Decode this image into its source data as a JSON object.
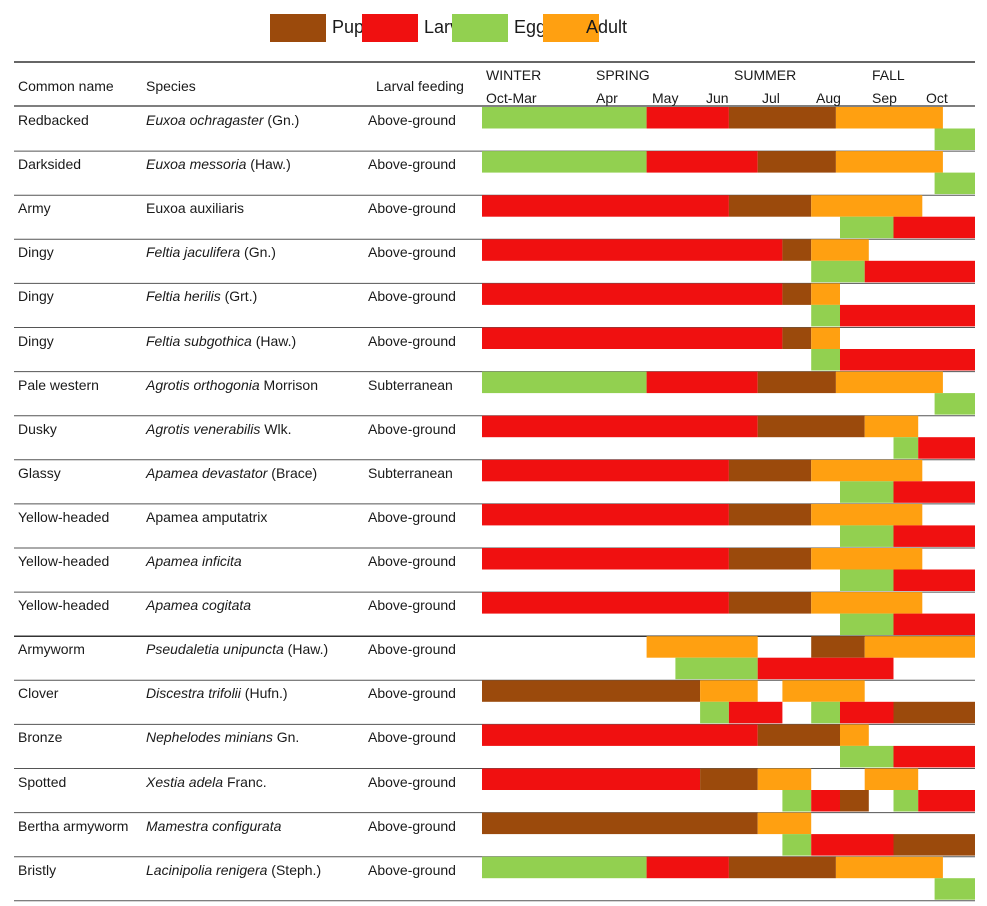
{
  "legend": [
    {
      "label": "Pupa",
      "color": "#9b4a0c"
    },
    {
      "label": "Larva",
      "color": "#f01010"
    },
    {
      "label": "Egg",
      "color": "#92d050"
    },
    {
      "label": "Adult",
      "color": "#ffa011"
    }
  ],
  "headers": {
    "common_name": "Common name",
    "species": "Species",
    "larval_feeding": "Larval feeding"
  },
  "seasons": [
    "WINTER",
    "SPRING",
    "SUMMER",
    "FALL"
  ],
  "months": [
    "Oct-Mar",
    "Apr",
    "May",
    "Jun",
    "Jul",
    "Aug",
    "Sep",
    "Oct"
  ],
  "chart_data": {
    "type": "table",
    "month_axis": [
      "Oct-Mar",
      "Apr",
      "May",
      "Jun",
      "Jul",
      "Aug",
      "Sep",
      "Oct"
    ],
    "note": "Bars span month positions: 0=start of Oct-Mar, 1=start of Apr ... 7=start of Oct, 8=end of Oct. Lane 0 = upper bar, lane 1 = lower bar.",
    "rows": [
      {
        "common": "Redbacked",
        "species": "Euxoa ochragaster",
        "author": " (Gn.)",
        "italic": true,
        "feeding": "Above-ground",
        "bars": [
          {
            "stage": "Egg",
            "start": 0,
            "end": 2,
            "lane": 0
          },
          {
            "stage": "Larva",
            "start": 2,
            "end": 3,
            "lane": 0
          },
          {
            "stage": "Pupa",
            "start": 3,
            "end": 4.3,
            "lane": 0
          },
          {
            "stage": "Adult",
            "start": 4.3,
            "end": 5.6,
            "lane": 0
          },
          {
            "stage": "Egg",
            "start": 5.5,
            "end": 6.5,
            "lane": 1
          }
        ]
      },
      {
        "common": "Darksided",
        "species": "Euxoa messoria",
        "author": " (Haw.)",
        "italic": true,
        "feeding": "Above-ground",
        "bars": [
          {
            "stage": "Egg",
            "start": 0,
            "end": 2,
            "lane": 0
          },
          {
            "stage": "Larva",
            "start": 2,
            "end": 3.35,
            "lane": 0
          },
          {
            "stage": "Pupa",
            "start": 3.35,
            "end": 4.3,
            "lane": 0
          },
          {
            "stage": "Adult",
            "start": 4.3,
            "end": 5.6,
            "lane": 0
          },
          {
            "stage": "Egg",
            "start": 5.5,
            "end": 6.5,
            "lane": 1
          }
        ]
      },
      {
        "common": "Army",
        "species": "Euxoa auxiliaris",
        "author": "",
        "italic": false,
        "feeding": "Above-ground",
        "bars": [
          {
            "stage": "Larva",
            "start": 0,
            "end": 3,
            "lane": 0
          },
          {
            "stage": "Pupa",
            "start": 3,
            "end": 4,
            "lane": 0
          },
          {
            "stage": "Adult",
            "start": 4,
            "end": 5.35,
            "lane": 0
          },
          {
            "stage": "Egg",
            "start": 4.35,
            "end": 5,
            "lane": 1
          },
          {
            "stage": "Larva",
            "start": 5,
            "end": 6.5,
            "lane": 1
          }
        ]
      },
      {
        "common": "Dingy",
        "species": "Feltia jaculifera",
        "author": " (Gn.)",
        "italic": true,
        "feeding": "Above-ground",
        "bars": [
          {
            "stage": "Larva",
            "start": 0,
            "end": 3.65,
            "lane": 0
          },
          {
            "stage": "Pupa",
            "start": 3.65,
            "end": 4,
            "lane": 0
          },
          {
            "stage": "Adult",
            "start": 4,
            "end": 4.7,
            "lane": 0
          },
          {
            "stage": "Egg",
            "start": 4,
            "end": 4.65,
            "lane": 1
          },
          {
            "stage": "Larva",
            "start": 4.65,
            "end": 6.5,
            "lane": 1
          }
        ]
      },
      {
        "common": "Dingy",
        "species": "Feltia herilis",
        "author": " (Grt.)",
        "italic": true,
        "feeding": "Above-ground",
        "bars": [
          {
            "stage": "Larva",
            "start": 0,
            "end": 3.65,
            "lane": 0
          },
          {
            "stage": "Pupa",
            "start": 3.65,
            "end": 4,
            "lane": 0
          },
          {
            "stage": "Adult",
            "start": 4,
            "end": 4.35,
            "lane": 0
          },
          {
            "stage": "Egg",
            "start": 4,
            "end": 4.35,
            "lane": 1
          },
          {
            "stage": "Larva",
            "start": 4.35,
            "end": 6.5,
            "lane": 1
          }
        ]
      },
      {
        "common": "Dingy",
        "species": "Feltia subgothica",
        "author": " (Haw.)",
        "italic": true,
        "feeding": "Above-ground",
        "bars": [
          {
            "stage": "Larva",
            "start": 0,
            "end": 3.65,
            "lane": 0
          },
          {
            "stage": "Pupa",
            "start": 3.65,
            "end": 4,
            "lane": 0
          },
          {
            "stage": "Adult",
            "start": 4,
            "end": 4.35,
            "lane": 0
          },
          {
            "stage": "Egg",
            "start": 4,
            "end": 4.35,
            "lane": 1
          },
          {
            "stage": "Larva",
            "start": 4.35,
            "end": 6.5,
            "lane": 1
          }
        ]
      },
      {
        "common": "Pale western",
        "species": "Agrotis orthogonia",
        "author": " Morrison",
        "italic": true,
        "feeding": "Subterranean",
        "bars": [
          {
            "stage": "Egg",
            "start": 0,
            "end": 2,
            "lane": 0
          },
          {
            "stage": "Larva",
            "start": 2,
            "end": 3.35,
            "lane": 0
          },
          {
            "stage": "Pupa",
            "start": 3.35,
            "end": 4.3,
            "lane": 0
          },
          {
            "stage": "Adult",
            "start": 4.3,
            "end": 5.6,
            "lane": 0
          },
          {
            "stage": "Egg",
            "start": 5.5,
            "end": 6.5,
            "lane": 1
          }
        ]
      },
      {
        "common": "Dusky",
        "species": "Agrotis venerabilis",
        "author": " Wlk.",
        "italic": true,
        "feeding": "Above-ground",
        "bars": [
          {
            "stage": "Larva",
            "start": 0,
            "end": 3.35,
            "lane": 0
          },
          {
            "stage": "Pupa",
            "start": 3.35,
            "end": 4.65,
            "lane": 0
          },
          {
            "stage": "Adult",
            "start": 4.65,
            "end": 5.3,
            "lane": 0
          },
          {
            "stage": "Egg",
            "start": 5,
            "end": 5.3,
            "lane": 1
          },
          {
            "stage": "Larva",
            "start": 5.3,
            "end": 6.5,
            "lane": 1
          }
        ]
      },
      {
        "common": "Glassy",
        "species": "Apamea devastator",
        "author": " (Brace)",
        "italic": true,
        "feeding": "Subterranean",
        "bars": [
          {
            "stage": "Larva",
            "start": 0,
            "end": 3,
            "lane": 0
          },
          {
            "stage": "Pupa",
            "start": 3,
            "end": 4,
            "lane": 0
          },
          {
            "stage": "Adult",
            "start": 4,
            "end": 5.35,
            "lane": 0
          },
          {
            "stage": "Egg",
            "start": 4.35,
            "end": 5,
            "lane": 1
          },
          {
            "stage": "Larva",
            "start": 5,
            "end": 6.5,
            "lane": 1
          }
        ]
      },
      {
        "common": "Yellow-headed",
        "species": "Apamea amputatrix",
        "author": "",
        "italic": false,
        "feeding": "Above-ground",
        "bars": [
          {
            "stage": "Larva",
            "start": 0,
            "end": 3,
            "lane": 0
          },
          {
            "stage": "Pupa",
            "start": 3,
            "end": 4,
            "lane": 0
          },
          {
            "stage": "Adult",
            "start": 4,
            "end": 5.35,
            "lane": 0
          },
          {
            "stage": "Egg",
            "start": 4.35,
            "end": 5,
            "lane": 1
          },
          {
            "stage": "Larva",
            "start": 5,
            "end": 6.5,
            "lane": 1
          }
        ]
      },
      {
        "common": "Yellow-headed",
        "species": "Apamea inficita",
        "author": "",
        "italic": true,
        "feeding": "Above-ground",
        "bars": [
          {
            "stage": "Larva",
            "start": 0,
            "end": 3,
            "lane": 0
          },
          {
            "stage": "Pupa",
            "start": 3,
            "end": 4,
            "lane": 0
          },
          {
            "stage": "Adult",
            "start": 4,
            "end": 5.35,
            "lane": 0
          },
          {
            "stage": "Egg",
            "start": 4.35,
            "end": 5,
            "lane": 1
          },
          {
            "stage": "Larva",
            "start": 5,
            "end": 6.5,
            "lane": 1
          }
        ]
      },
      {
        "common": "Yellow-headed",
        "species": "Apamea cogitata",
        "author": "",
        "italic": true,
        "feeding": "Above-ground",
        "bars": [
          {
            "stage": "Larva",
            "start": 0,
            "end": 3,
            "lane": 0
          },
          {
            "stage": "Pupa",
            "start": 3,
            "end": 4,
            "lane": 0
          },
          {
            "stage": "Adult",
            "start": 4,
            "end": 5.35,
            "lane": 0
          },
          {
            "stage": "Egg",
            "start": 4.35,
            "end": 5,
            "lane": 1
          },
          {
            "stage": "Larva",
            "start": 5,
            "end": 6.5,
            "lane": 1
          }
        ]
      },
      {
        "common": "Armyworm",
        "species": "Pseudaletia unipuncta",
        "author": " (Haw.)",
        "italic": true,
        "feeding": "Above-ground",
        "bars": [
          {
            "stage": "Adult",
            "start": 2,
            "end": 3.35,
            "lane": 0
          },
          {
            "stage": "Pupa",
            "start": 4,
            "end": 4.65,
            "lane": 0
          },
          {
            "stage": "Adult",
            "start": 4.65,
            "end": 6.5,
            "lane": 0
          },
          {
            "stage": "Egg",
            "start": 2.35,
            "end": 3.35,
            "lane": 1
          },
          {
            "stage": "Larva",
            "start": 3.35,
            "end": 5,
            "lane": 1
          }
        ]
      },
      {
        "common": "Clover",
        "species": "Discestra trifolii",
        "author": " (Hufn.)",
        "italic": true,
        "feeding": "Above-ground",
        "bars": [
          {
            "stage": "Pupa",
            "start": 0,
            "end": 2.65,
            "lane": 0
          },
          {
            "stage": "Adult",
            "start": 2.65,
            "end": 3.35,
            "lane": 0
          },
          {
            "stage": "Adult",
            "start": 3.65,
            "end": 4.65,
            "lane": 0
          },
          {
            "stage": "Egg",
            "start": 2.65,
            "end": 3,
            "lane": 1
          },
          {
            "stage": "Larva",
            "start": 3,
            "end": 3.65,
            "lane": 1
          },
          {
            "stage": "Egg",
            "start": 4,
            "end": 4.35,
            "lane": 1
          },
          {
            "stage": "Larva",
            "start": 4.35,
            "end": 5,
            "lane": 1
          },
          {
            "stage": "Pupa",
            "start": 5,
            "end": 6.5,
            "lane": 1
          }
        ]
      },
      {
        "common": "Bronze",
        "species": "Nephelodes minians",
        "author": " Gn.",
        "italic": true,
        "feeding": "Above-ground",
        "bars": [
          {
            "stage": "Larva",
            "start": 0,
            "end": 3.35,
            "lane": 0
          },
          {
            "stage": "Pupa",
            "start": 3.35,
            "end": 4.35,
            "lane": 0
          },
          {
            "stage": "Adult",
            "start": 4.35,
            "end": 4.7,
            "lane": 0
          },
          {
            "stage": "Egg",
            "start": 4.35,
            "end": 5,
            "lane": 1
          },
          {
            "stage": "Larva",
            "start": 5,
            "end": 6.5,
            "lane": 1
          }
        ]
      },
      {
        "common": "Spotted",
        "species": "Xestia adela",
        "author": " Franc.",
        "italic": true,
        "feeding": "Above-ground",
        "bars": [
          {
            "stage": "Larva",
            "start": 0,
            "end": 2.65,
            "lane": 0
          },
          {
            "stage": "Pupa",
            "start": 2.65,
            "end": 3.35,
            "lane": 0
          },
          {
            "stage": "Adult",
            "start": 3.35,
            "end": 4,
            "lane": 0
          },
          {
            "stage": "Adult",
            "start": 4.65,
            "end": 5.3,
            "lane": 0
          },
          {
            "stage": "Egg",
            "start": 3.65,
            "end": 4,
            "lane": 1
          },
          {
            "stage": "Larva",
            "start": 4,
            "end": 4.35,
            "lane": 1
          },
          {
            "stage": "Pupa",
            "start": 4.35,
            "end": 4.7,
            "lane": 1
          },
          {
            "stage": "Egg",
            "start": 5,
            "end": 5.3,
            "lane": 1
          },
          {
            "stage": "Larva",
            "start": 5.3,
            "end": 6.5,
            "lane": 1
          }
        ]
      },
      {
        "common": "Bertha armyworm",
        "species": "Mamestra configurata",
        "author": "",
        "italic": true,
        "feeding": "Above-ground",
        "bars": [
          {
            "stage": "Pupa",
            "start": 0,
            "end": 3.35,
            "lane": 0
          },
          {
            "stage": "Adult",
            "start": 3.35,
            "end": 4,
            "lane": 0
          },
          {
            "stage": "Egg",
            "start": 3.65,
            "end": 4,
            "lane": 1
          },
          {
            "stage": "Larva",
            "start": 4,
            "end": 5,
            "lane": 1
          },
          {
            "stage": "Pupa",
            "start": 5,
            "end": 6.5,
            "lane": 1
          }
        ]
      },
      {
        "common": "Bristly",
        "species": "Lacinipolia renigera",
        "author": " (Steph.)",
        "italic": true,
        "feeding": "Above-ground",
        "bars": [
          {
            "stage": "Egg",
            "start": 0,
            "end": 2,
            "lane": 0
          },
          {
            "stage": "Larva",
            "start": 2,
            "end": 3,
            "lane": 0
          },
          {
            "stage": "Pupa",
            "start": 3,
            "end": 4.3,
            "lane": 0
          },
          {
            "stage": "Adult",
            "start": 4.3,
            "end": 5.6,
            "lane": 0
          },
          {
            "stage": "Egg",
            "start": 5.5,
            "end": 6.5,
            "lane": 1
          }
        ]
      }
    ]
  }
}
